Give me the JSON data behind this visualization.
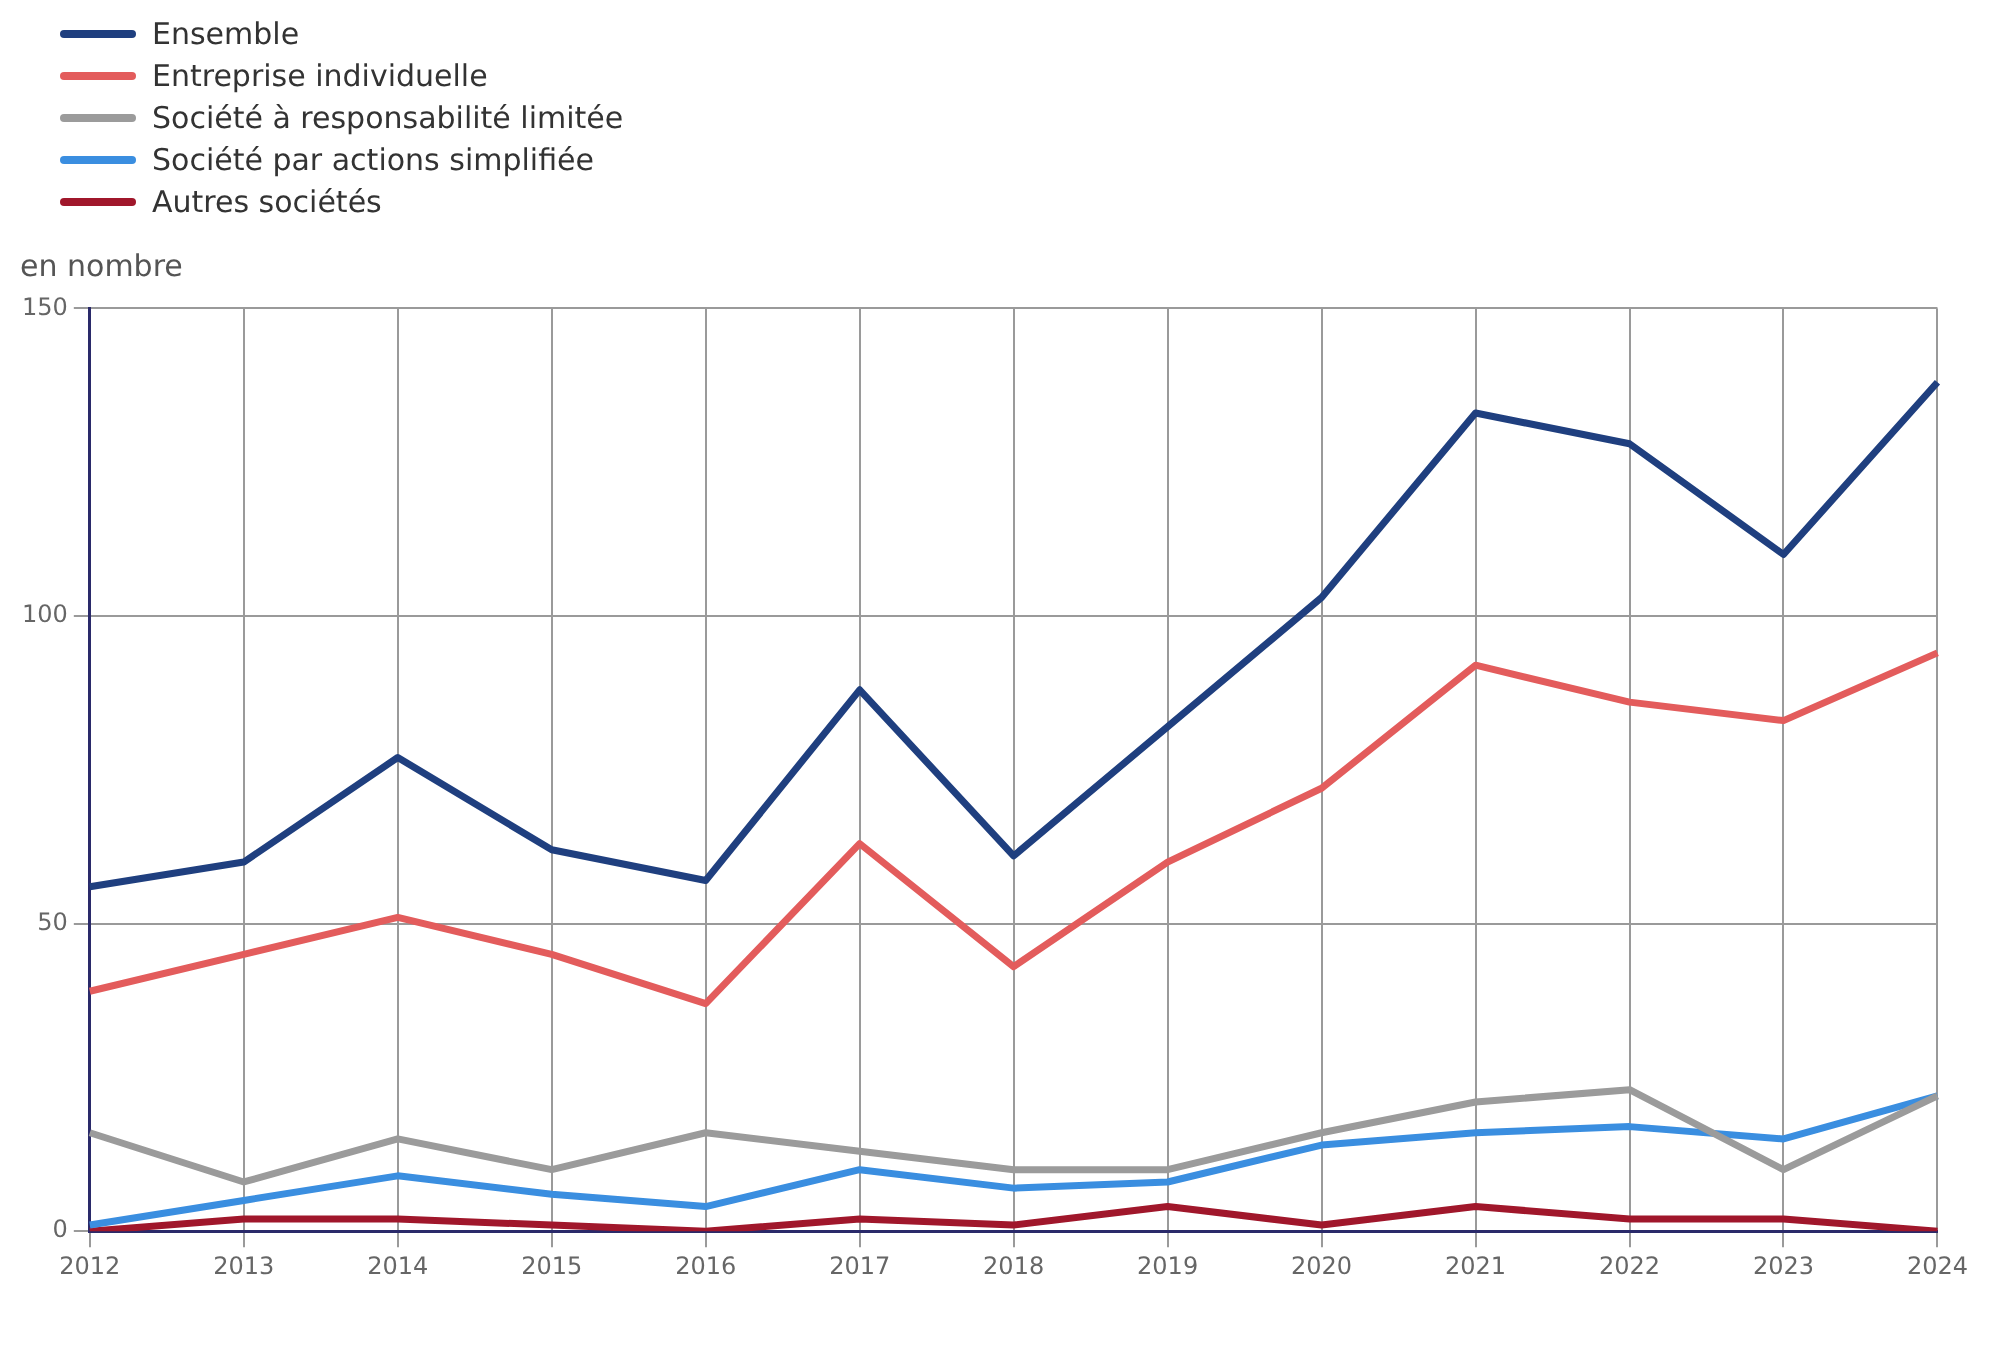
{
  "chart_data": {
    "type": "line",
    "ylabel": "en nombre",
    "categories": [
      "2012",
      "2013",
      "2014",
      "2015",
      "2016",
      "2017",
      "2018",
      "2019",
      "2020",
      "2021",
      "2022",
      "2023",
      "2024"
    ],
    "series": [
      {
        "name": "Ensemble",
        "color": "#1f3f7f",
        "values": [
          56,
          60,
          77,
          62,
          57,
          88,
          61,
          82,
          103,
          133,
          128,
          110,
          138
        ]
      },
      {
        "name": "Entreprise individuelle",
        "color": "#e35c5c",
        "values": [
          39,
          45,
          51,
          45,
          37,
          63,
          43,
          60,
          72,
          92,
          86,
          83,
          94
        ]
      },
      {
        "name": "Société à responsabilité limitée",
        "color": "#9b9b9b",
        "values": [
          16,
          8,
          15,
          10,
          16,
          13,
          10,
          10,
          16,
          21,
          23,
          10,
          22
        ]
      },
      {
        "name": "Société par actions simplifiée",
        "color": "#3a8ee0",
        "values": [
          1,
          5,
          9,
          6,
          4,
          10,
          7,
          8,
          14,
          16,
          17,
          15,
          22
        ]
      },
      {
        "name": "Autres sociétés",
        "color": "#a0172b",
        "values": [
          0,
          2,
          2,
          1,
          0,
          2,
          1,
          4,
          1,
          4,
          2,
          2,
          0
        ]
      }
    ],
    "ylim": [
      0,
      150
    ],
    "yticks": [
      0,
      50,
      100,
      150
    ],
    "grid": true,
    "legend": "top left",
    "marker": "none",
    "line_style": "solid"
  }
}
